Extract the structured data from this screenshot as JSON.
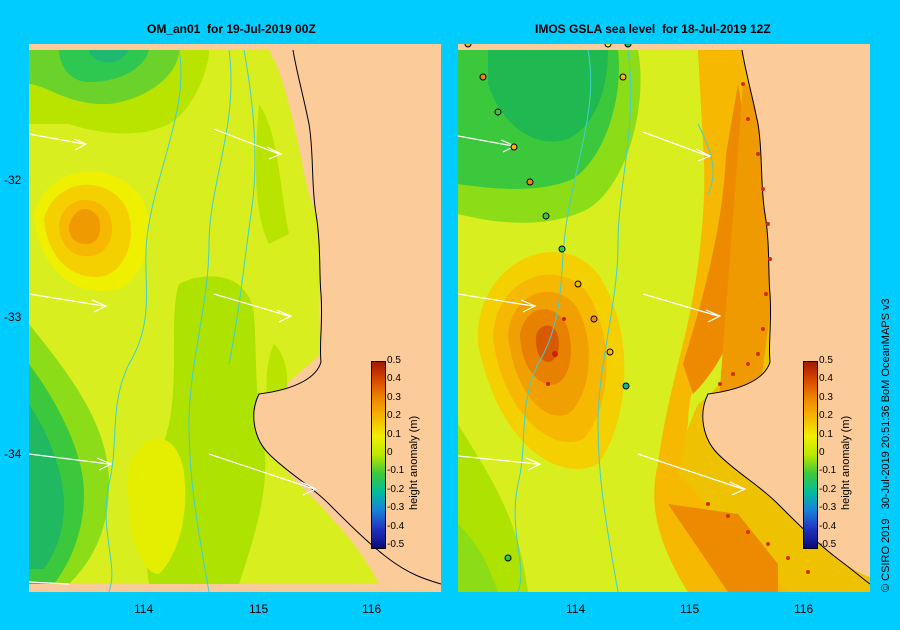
{
  "left_panel": {
    "title": "OM_an01  for 19-Jul-2019 00Z"
  },
  "right_panel": {
    "title": "IMOS GSLA sea level  for 18-Jul-2019 12Z"
  },
  "axes": {
    "y_ticks": [
      "-32",
      "-33",
      "-34"
    ],
    "x_ticks": [
      "114",
      "115",
      "116"
    ]
  },
  "colorbar": {
    "label": "height anomaly (m)",
    "ticks": [
      "0.5",
      "0.4",
      "0.3",
      "0.2",
      "0.1",
      "0",
      "-0.1",
      "-0.2",
      "-0.3",
      "-0.4",
      "-0.5"
    ],
    "colors": [
      "#a01a00",
      "#d94a00",
      "#ee8a00",
      "#f6b800",
      "#eef000",
      "#b8e800",
      "#3cc83c",
      "#00bda0",
      "#1a7fd9",
      "#2030c0",
      "#0a0a78"
    ]
  },
  "credit": "© CSIRO 2019   30-Jul-2019 20:51:36 BoM OceanMAPS v3",
  "colors": {
    "background": "#00ccff",
    "land": "#fccb9a",
    "current": "#ffffff",
    "bathymetry": "#40d0d0",
    "coast": "#000000"
  }
}
